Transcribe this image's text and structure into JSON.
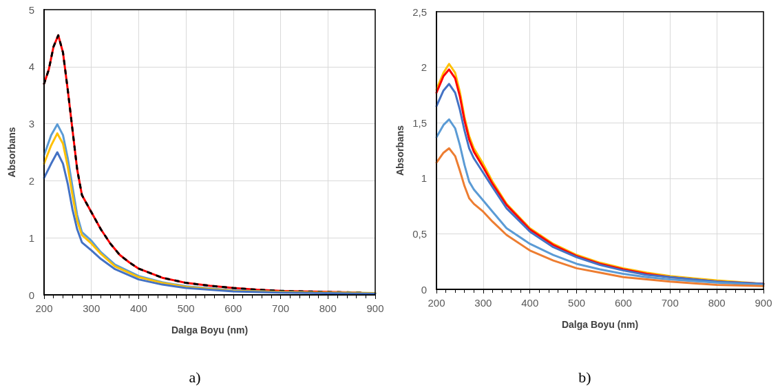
{
  "chart_data": [
    {
      "type": "line",
      "xlabel": "Dalga Boyu (nm)",
      "ylabel": "Absorbans",
      "annotations": [
        "a)"
      ],
      "xlim": [
        200,
        900
      ],
      "xticks": [
        200,
        300,
        400,
        500,
        600,
        700,
        800,
        900
      ],
      "ylim": [
        0,
        5
      ],
      "yticks": [
        0,
        1,
        2,
        3,
        4,
        5
      ],
      "grid": true,
      "marker": "none",
      "line_style": "solid",
      "series": [
        {
          "color": "#ff0000",
          "x": [
            200,
            210,
            220,
            230,
            240,
            250,
            260,
            270,
            280,
            290,
            300,
            320,
            340,
            360,
            380,
            400,
            450,
            500,
            550,
            600,
            650,
            700,
            750,
            800,
            870
          ],
          "values": [
            3.7,
            3.95,
            4.35,
            4.55,
            4.25,
            3.6,
            2.9,
            2.2,
            1.75,
            1.6,
            1.45,
            1.15,
            0.9,
            0.7,
            0.57,
            0.46,
            0.3,
            0.21,
            0.16,
            0.12,
            0.09,
            0.07,
            0.06,
            0.05,
            0.04
          ]
        },
        {
          "color": "#000000",
          "line_style": "dashed",
          "x": [
            200,
            210,
            220,
            230,
            240,
            250,
            260,
            270,
            280,
            290,
            300,
            320,
            340,
            360,
            380,
            400,
            450,
            500,
            550,
            600,
            650,
            700,
            750,
            800,
            870
          ],
          "values": [
            3.7,
            3.95,
            4.35,
            4.55,
            4.25,
            3.6,
            2.9,
            2.2,
            1.75,
            1.6,
            1.45,
            1.15,
            0.9,
            0.7,
            0.57,
            0.46,
            0.3,
            0.21,
            0.16,
            0.12,
            0.09,
            0.07,
            0.06,
            0.05,
            0.04
          ]
        },
        {
          "color": "#5b9bd5",
          "x": [
            200,
            215,
            228,
            240,
            250,
            260,
            270,
            280,
            300,
            320,
            350,
            400,
            450,
            500,
            600,
            700,
            800,
            900
          ],
          "values": [
            2.45,
            2.8,
            2.99,
            2.8,
            2.4,
            1.9,
            1.4,
            1.1,
            0.95,
            0.75,
            0.53,
            0.33,
            0.22,
            0.15,
            0.08,
            0.05,
            0.04,
            0.03
          ]
        },
        {
          "color": "#ffc000",
          "x": [
            200,
            215,
            228,
            240,
            250,
            260,
            270,
            280,
            300,
            320,
            350,
            400,
            450,
            500,
            600,
            700,
            800,
            900
          ],
          "values": [
            2.3,
            2.62,
            2.83,
            2.65,
            2.25,
            1.75,
            1.3,
            1.05,
            0.9,
            0.72,
            0.5,
            0.31,
            0.21,
            0.14,
            0.07,
            0.05,
            0.04,
            0.03
          ]
        },
        {
          "color": "#4472c4",
          "x": [
            200,
            215,
            228,
            240,
            250,
            260,
            270,
            280,
            300,
            320,
            350,
            400,
            450,
            500,
            600,
            700,
            800,
            900
          ],
          "values": [
            2.05,
            2.3,
            2.5,
            2.3,
            1.95,
            1.5,
            1.15,
            0.92,
            0.78,
            0.63,
            0.45,
            0.27,
            0.18,
            0.12,
            0.06,
            0.04,
            0.03,
            0.02
          ]
        }
      ]
    },
    {
      "type": "line",
      "xlabel": "Dalga Boyu (nm)",
      "ylabel": "Absorbans",
      "annotations": [
        "b)"
      ],
      "xlim": [
        200,
        900
      ],
      "xticks": [
        200,
        300,
        400,
        500,
        600,
        700,
        800,
        900
      ],
      "ylim": [
        0,
        2.5
      ],
      "yticks": [
        0,
        {
          "value": 0.5,
          "label": "0,5"
        },
        1,
        {
          "value": 1.5,
          "label": "1,5"
        },
        2,
        {
          "value": 2.5,
          "label": "2,5"
        }
      ],
      "grid": true,
      "marker": "none",
      "line_style": "solid",
      "x": [
        200,
        215,
        227,
        240,
        250,
        260,
        270,
        280,
        300,
        320,
        350,
        400,
        450,
        500,
        550,
        600,
        650,
        700,
        800,
        900
      ],
      "series": [
        {
          "color": "#ffc000",
          "values": [
            1.8,
            1.95,
            2.03,
            1.95,
            1.78,
            1.55,
            1.38,
            1.27,
            1.13,
            0.97,
            0.77,
            0.55,
            0.41,
            0.31,
            0.24,
            0.19,
            0.15,
            0.12,
            0.08,
            0.05
          ]
        },
        {
          "color": "#ff0000",
          "values": [
            1.77,
            1.92,
            1.98,
            1.9,
            1.74,
            1.52,
            1.35,
            1.24,
            1.1,
            0.95,
            0.76,
            0.54,
            0.4,
            0.3,
            0.23,
            0.18,
            0.14,
            0.11,
            0.07,
            0.05
          ]
        },
        {
          "color": "#4472c4",
          "values": [
            1.65,
            1.79,
            1.85,
            1.77,
            1.62,
            1.43,
            1.27,
            1.18,
            1.05,
            0.92,
            0.73,
            0.52,
            0.38,
            0.29,
            0.22,
            0.17,
            0.13,
            0.11,
            0.07,
            0.05
          ]
        },
        {
          "color": "#5b9bd5",
          "values": [
            1.37,
            1.48,
            1.53,
            1.45,
            1.3,
            1.12,
            0.97,
            0.9,
            0.8,
            0.7,
            0.55,
            0.41,
            0.31,
            0.23,
            0.18,
            0.14,
            0.11,
            0.09,
            0.06,
            0.04
          ]
        },
        {
          "color": "#ed7d31",
          "values": [
            1.14,
            1.23,
            1.27,
            1.2,
            1.07,
            0.93,
            0.82,
            0.77,
            0.7,
            0.61,
            0.49,
            0.35,
            0.26,
            0.19,
            0.15,
            0.11,
            0.09,
            0.07,
            0.04,
            0.03
          ]
        }
      ]
    }
  ]
}
